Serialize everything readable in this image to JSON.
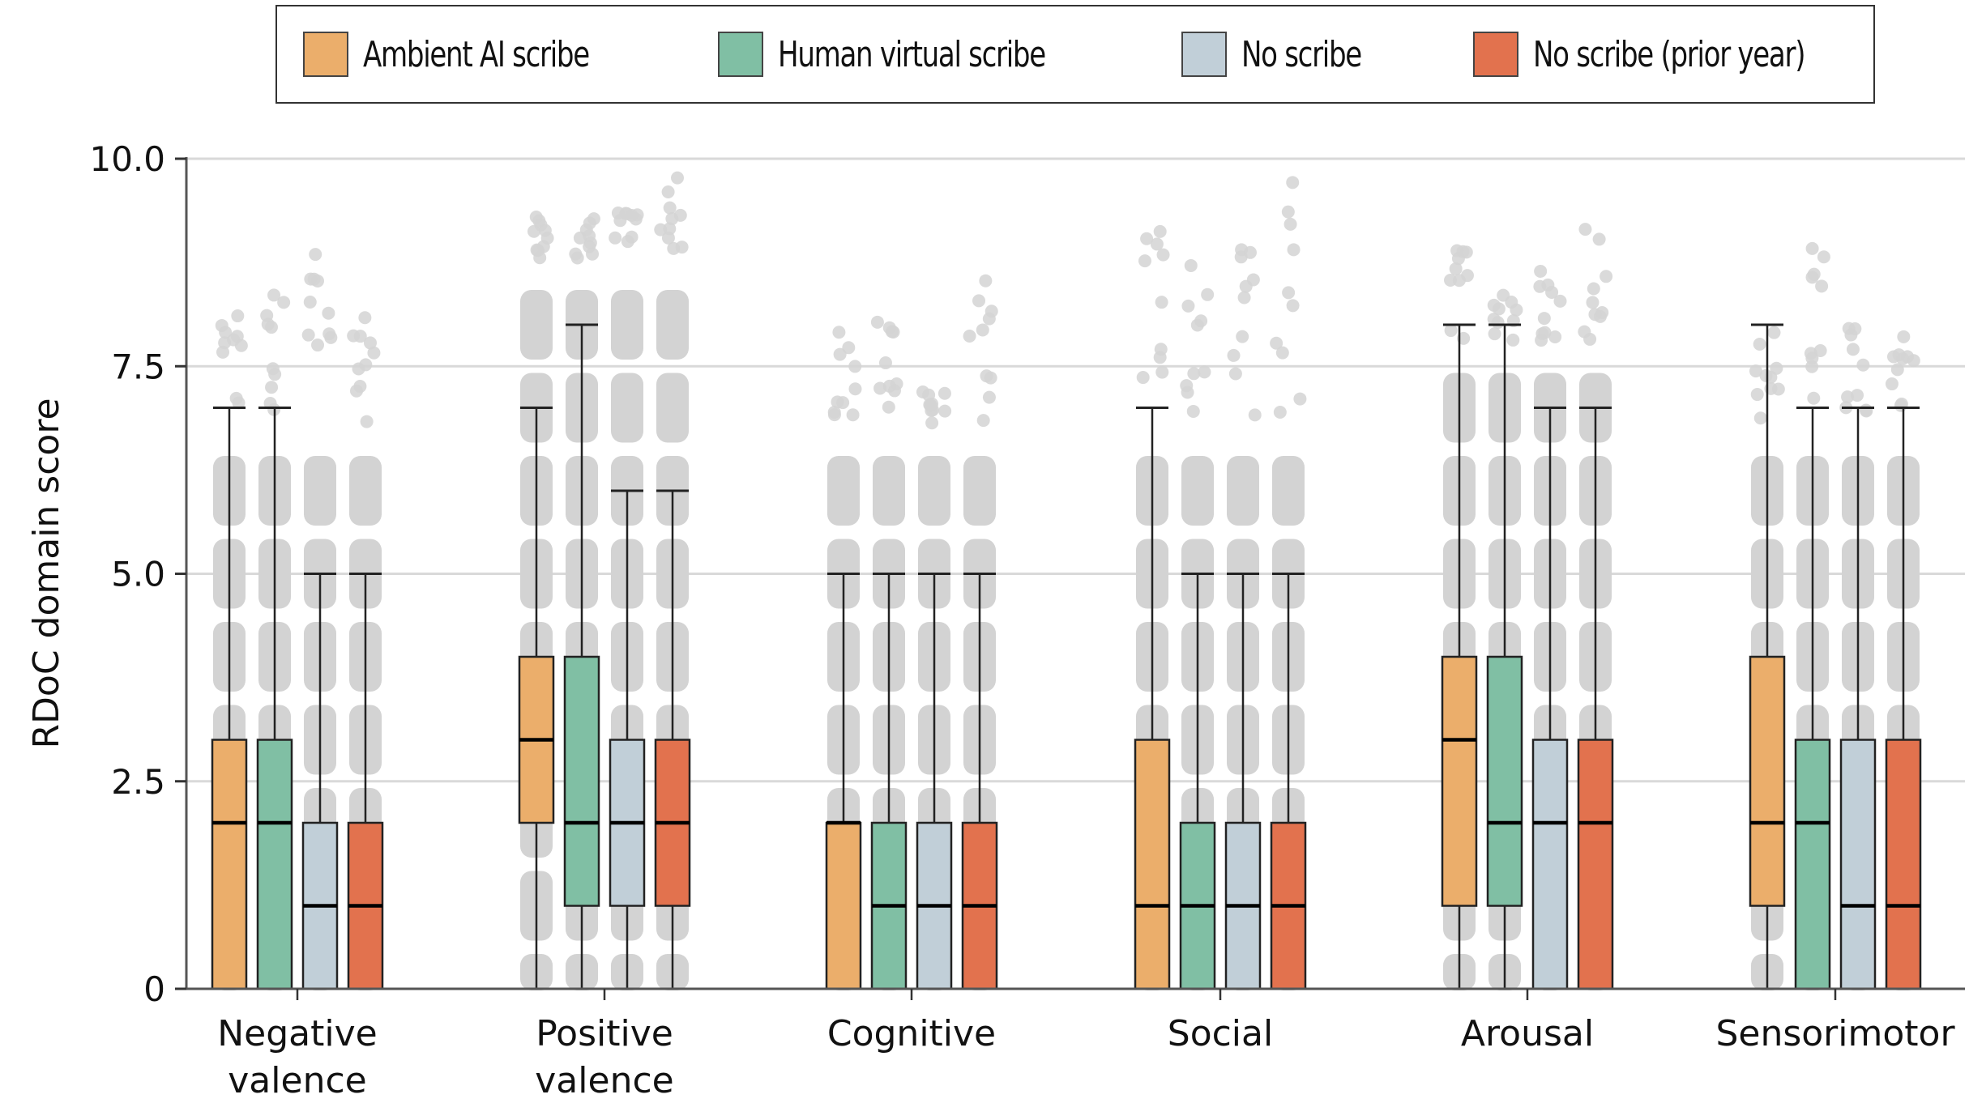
{
  "chart_data": {
    "type": "boxplot",
    "title": "",
    "xlabel": "",
    "ylabel": "RDoC domain score",
    "ylim": [
      0,
      10
    ],
    "yticks": [
      0,
      2.5,
      5.0,
      7.5,
      10.0
    ],
    "ytick_labels": [
      "0",
      "2.5",
      "5.0",
      "7.5",
      "10.0"
    ],
    "grid": "horizontal",
    "legend_position": "top",
    "categories": [
      "Negative valence",
      "Positive valence",
      "Cognitive",
      "Social",
      "Arousal",
      "Sensorimotor"
    ],
    "category_labels": [
      [
        "Negative",
        "valence"
      ],
      [
        "Positive",
        "valence"
      ],
      [
        "Cognitive"
      ],
      [
        "Social"
      ],
      [
        "Arousal"
      ],
      [
        "Sensorimotor"
      ]
    ],
    "series": [
      {
        "name": "Ambient AI scribe",
        "color": "#EBAE6B",
        "boxes": [
          {
            "whisker_low": 0,
            "q1": 0,
            "median": 2,
            "q3": 3,
            "whisker_high": 7
          },
          {
            "whisker_low": 0,
            "q1": 2,
            "median": 3,
            "q3": 4,
            "whisker_high": 7
          },
          {
            "whisker_low": 0,
            "q1": 0,
            "median": 2,
            "q3": 2,
            "whisker_high": 5
          },
          {
            "whisker_low": 0,
            "q1": 0,
            "median": 1,
            "q3": 3,
            "whisker_high": 7
          },
          {
            "whisker_low": 0,
            "q1": 1,
            "median": 3,
            "q3": 4,
            "whisker_high": 8
          },
          {
            "whisker_low": 0,
            "q1": 1,
            "median": 2,
            "q3": 4,
            "whisker_high": 8
          }
        ]
      },
      {
        "name": "Human virtual scribe",
        "color": "#80BFA4",
        "boxes": [
          {
            "whisker_low": 0,
            "q1": 0,
            "median": 2,
            "q3": 3,
            "whisker_high": 7
          },
          {
            "whisker_low": 0,
            "q1": 1,
            "median": 2,
            "q3": 4,
            "whisker_high": 8
          },
          {
            "whisker_low": 0,
            "q1": 0,
            "median": 1,
            "q3": 2,
            "whisker_high": 5
          },
          {
            "whisker_low": 0,
            "q1": 0,
            "median": 1,
            "q3": 2,
            "whisker_high": 5
          },
          {
            "whisker_low": 0,
            "q1": 1,
            "median": 2,
            "q3": 4,
            "whisker_high": 8
          },
          {
            "whisker_low": 0,
            "q1": 0,
            "median": 2,
            "q3": 3,
            "whisker_high": 7
          }
        ]
      },
      {
        "name": "No scribe",
        "color": "#C1CFD8",
        "boxes": [
          {
            "whisker_low": 0,
            "q1": 0,
            "median": 1,
            "q3": 2,
            "whisker_high": 5
          },
          {
            "whisker_low": 0,
            "q1": 1,
            "median": 2,
            "q3": 3,
            "whisker_high": 6
          },
          {
            "whisker_low": 0,
            "q1": 0,
            "median": 1,
            "q3": 2,
            "whisker_high": 5
          },
          {
            "whisker_low": 0,
            "q1": 0,
            "median": 1,
            "q3": 2,
            "whisker_high": 5
          },
          {
            "whisker_low": 0,
            "q1": 0,
            "median": 2,
            "q3": 3,
            "whisker_high": 7
          },
          {
            "whisker_low": 0,
            "q1": 0,
            "median": 1,
            "q3": 3,
            "whisker_high": 7
          }
        ]
      },
      {
        "name": "No scribe (prior year)",
        "color": "#E2724E",
        "boxes": [
          {
            "whisker_low": 0,
            "q1": 0,
            "median": 1,
            "q3": 2,
            "whisker_high": 5
          },
          {
            "whisker_low": 0,
            "q1": 1,
            "median": 2,
            "q3": 3,
            "whisker_high": 6
          },
          {
            "whisker_low": 0,
            "q1": 0,
            "median": 1,
            "q3": 2,
            "whisker_high": 5
          },
          {
            "whisker_low": 0,
            "q1": 0,
            "median": 1,
            "q3": 2,
            "whisker_high": 5
          },
          {
            "whisker_low": 0,
            "q1": 0,
            "median": 2,
            "q3": 3,
            "whisker_high": 7
          },
          {
            "whisker_low": 0,
            "q1": 0,
            "median": 1,
            "q3": 3,
            "whisker_high": 7
          }
        ]
      }
    ],
    "jitter_points": {
      "color": "#D3D3D3",
      "dense_max_by_group": [
        6.4,
        8.4,
        6.4,
        6.4,
        7.4,
        6.4
      ],
      "outlier_max_by_series": [
        [
          8.3,
          8.4,
          9.3,
          8.4
        ],
        [
          9.3,
          9.4,
          9.6,
          9.8
        ],
        [
          8.0,
          8.4,
          7.2,
          8.7
        ],
        [
          9.6,
          9.3,
          9.4,
          9.8
        ],
        [
          8.9,
          8.4,
          8.8,
          9.3
        ],
        [
          8.0,
          9.0,
          8.0,
          7.9
        ]
      ]
    }
  },
  "legend": {
    "items": [
      {
        "label": "Ambient AI scribe",
        "color": "#EBAE6B"
      },
      {
        "label": "Human virtual scribe",
        "color": "#80BFA4"
      },
      {
        "label": "No scribe",
        "color": "#C1CFD8"
      },
      {
        "label": "No scribe (prior year)",
        "color": "#E2724E"
      }
    ]
  }
}
